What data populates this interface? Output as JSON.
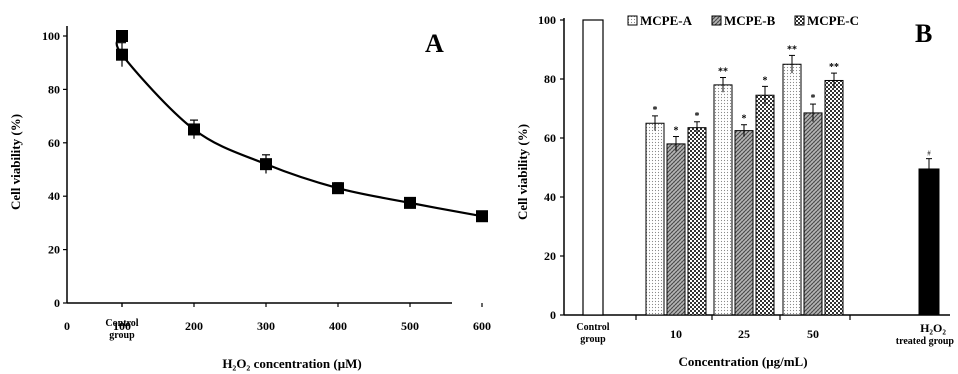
{
  "chart_data": [
    {
      "panel": "A",
      "type": "line",
      "x": [
        0,
        100,
        200,
        300,
        400,
        500,
        600
      ],
      "tick_labels": [
        "Control group",
        "100",
        "200",
        "300",
        "400",
        "500",
        "600"
      ],
      "origin_label": "0",
      "values": [
        100,
        93,
        65,
        52,
        43,
        37.5,
        32.5
      ],
      "errors": [
        0,
        4.5,
        3.5,
        3.5,
        2,
        1.5,
        1.5
      ],
      "ylim": [
        0,
        100
      ],
      "yticks": [
        0,
        20,
        40,
        60,
        80,
        100
      ],
      "xlim": [
        0,
        600
      ],
      "ylabel": "Cell viability (%)",
      "xlabel": "H₂O₂ concentration (μM)",
      "marker": "square",
      "grid": false
    },
    {
      "panel": "B",
      "type": "bar",
      "categories": [
        "Control group",
        "10",
        "25",
        "50",
        "H₂O₂ treated group"
      ],
      "ylim": [
        0,
        100
      ],
      "yticks": [
        0,
        20,
        40,
        60,
        80,
        100
      ],
      "ylabel": "Cell viability (%)",
      "xlabel": "Concentration (μg/mL)",
      "legend_position": "top",
      "series": [
        {
          "name": "MCPE-A",
          "pattern": "dots",
          "values": [
            null,
            65,
            78,
            85,
            null
          ],
          "errors": [
            0,
            2.5,
            2.5,
            3,
            0
          ],
          "marks": [
            "",
            "*",
            "**",
            "**",
            ""
          ]
        },
        {
          "name": "MCPE-B",
          "pattern": "hatch",
          "values": [
            null,
            58,
            62.5,
            68.5,
            null
          ],
          "errors": [
            0,
            2.5,
            2,
            3,
            0
          ],
          "marks": [
            "",
            "*",
            "*",
            "*",
            ""
          ]
        },
        {
          "name": "MCPE-C",
          "pattern": "checker",
          "values": [
            null,
            63.5,
            74.5,
            79.5,
            null
          ],
          "errors": [
            0,
            2,
            3,
            2.5,
            0
          ],
          "marks": [
            "",
            "*",
            "*",
            "**",
            ""
          ]
        }
      ],
      "control": {
        "value": 100,
        "color": "#ffffff"
      },
      "treated": {
        "value": 49.5,
        "error": 3.5,
        "mark": "#",
        "color": "#000000"
      }
    }
  ],
  "panel_a": {
    "letter": "A",
    "xlabel": "H₂O₂ concentration (μM)"
  },
  "panel_b": {
    "letter": "B",
    "xlabel": "Concentration (μg/mL)",
    "last_cat_line1": "H₂O₂",
    "last_cat_line2": "treated group",
    "first_cat_line1": "Control",
    "first_cat_line2": "group"
  }
}
